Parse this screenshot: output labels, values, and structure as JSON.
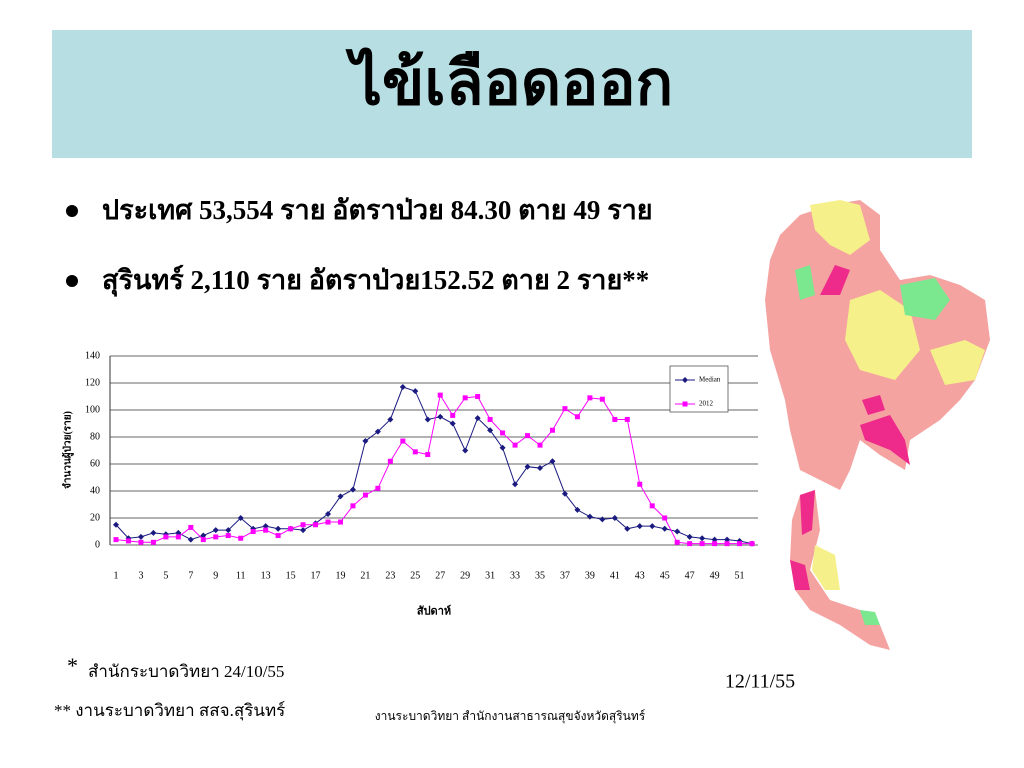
{
  "slide_title": "ไข้เลือดออก",
  "bullets": [
    "ประเทศ  53,554 ราย อัตราป่วย 84.30  ตาย 49 ราย",
    "สุรินทร์ 2,110 ราย อัตราป่วย152.52  ตาย 2 ราย**"
  ],
  "chart_data": {
    "type": "line",
    "x_label": "สัปดาห์",
    "y_label": "จำนวนผู้ป่วย(ราย)",
    "categories": [
      1,
      null,
      3,
      null,
      5,
      null,
      7,
      null,
      9,
      null,
      11,
      null,
      13,
      null,
      15,
      null,
      17,
      null,
      19,
      null,
      21,
      null,
      23,
      null,
      25,
      null,
      27,
      null,
      29,
      null,
      31,
      null,
      33,
      null,
      35,
      null,
      37,
      null,
      39,
      null,
      41,
      null,
      43,
      null,
      45,
      null,
      47,
      null,
      49,
      null,
      51,
      null
    ],
    "series": [
      {
        "name": "Median",
        "color": "#1a1a80",
        "marker": "diamond",
        "values": [
          15,
          5,
          6,
          9,
          8,
          9,
          4,
          7,
          11,
          11,
          20,
          12,
          14,
          12,
          12,
          11,
          16,
          23,
          36,
          41,
          77,
          84,
          93,
          117,
          114,
          93,
          95,
          90,
          70,
          94,
          85,
          72,
          45,
          58,
          57,
          62,
          38,
          26,
          21,
          19,
          20,
          12,
          14,
          14,
          12,
          10,
          6,
          5,
          4,
          4,
          3,
          1
        ]
      },
      {
        "name": "2012",
        "color": "#ff00ff",
        "marker": "square",
        "values": [
          4,
          3,
          2,
          2,
          6,
          6,
          13,
          4,
          6,
          7,
          5,
          10,
          11,
          7,
          12,
          15,
          15,
          17,
          17,
          29,
          37,
          42,
          62,
          77,
          69,
          67,
          111,
          96,
          109,
          110,
          93,
          83,
          74,
          81,
          74,
          85,
          101,
          95,
          109,
          108,
          93,
          93,
          45,
          29,
          20,
          2,
          1,
          1,
          1,
          1,
          1,
          1
        ]
      }
    ],
    "ylim": [
      0,
      140
    ],
    "yticks": [
      0,
      20,
      40,
      60,
      80,
      100,
      120,
      140
    ],
    "grid": true,
    "legend": "upper right"
  },
  "footnotes": [
    "*",
    "สำนักระบาดวิทยา 24/10/55",
    "** งานระบาดวิทยา สสจ.สุรินทร์"
  ],
  "date": "12/11/55",
  "footer": "งานระบาดวิทยา สำนักงานสาธารณสุขจังหวัดสุรินทร์"
}
